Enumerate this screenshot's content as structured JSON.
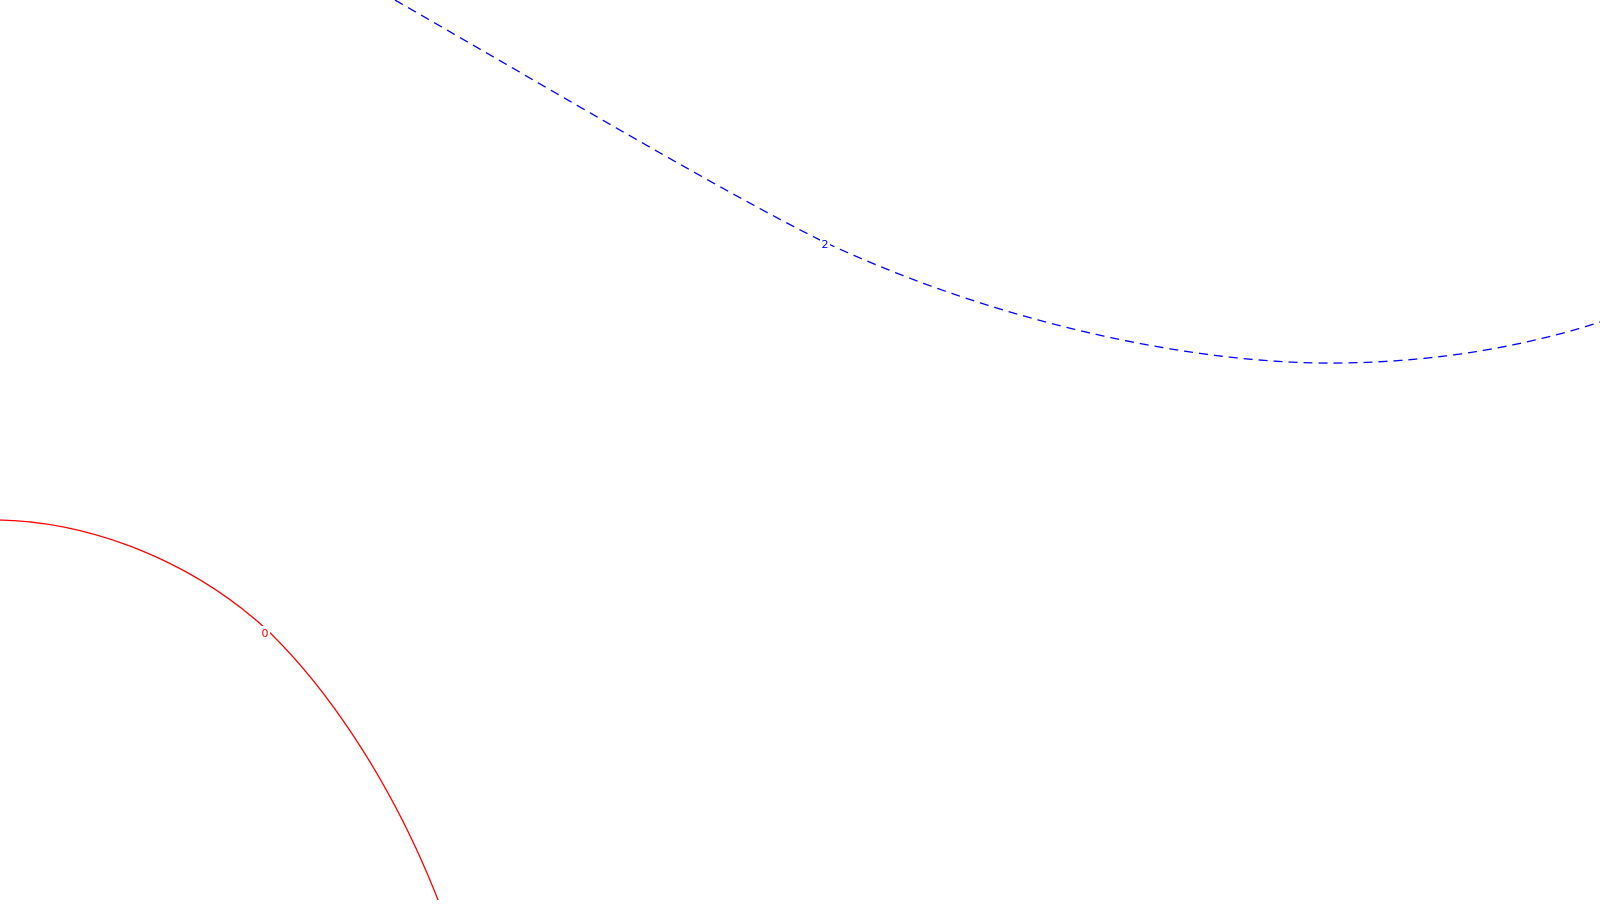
{
  "chart_data": {
    "type": "contour",
    "title": "",
    "xlabel": "",
    "ylabel": "",
    "grid": false,
    "legend": "none",
    "contours": [
      {
        "level_label": "0",
        "color": "#ff0000",
        "line_style": "solid"
      },
      {
        "level_label": "2",
        "color": "#0000ff",
        "line_style": "dashed"
      }
    ]
  }
}
